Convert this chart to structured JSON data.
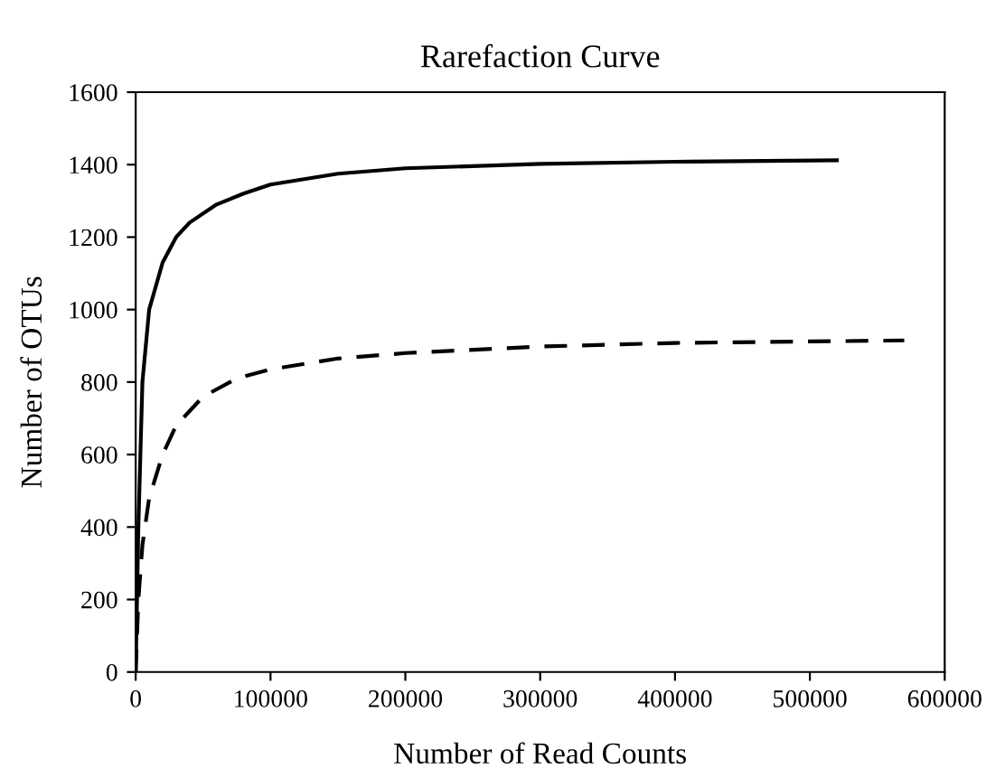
{
  "chart_data": {
    "type": "line",
    "title": "Rarefaction Curve",
    "xlabel": "Number of Read Counts",
    "ylabel": "Number of OTUs",
    "xlim": [
      0,
      600000
    ],
    "xticks": [
      0,
      100000,
      200000,
      300000,
      400000,
      500000,
      600000
    ],
    "ylim": [
      0,
      1600
    ],
    "yticks": [
      0,
      200,
      400,
      600,
      800,
      1000,
      1200,
      1400,
      1600
    ],
    "grid": false,
    "legend": false,
    "marker": "none",
    "series": [
      {
        "color": "#000000",
        "line_style": "solid",
        "x": [
          0,
          2000,
          5000,
          10000,
          20000,
          30000,
          40000,
          60000,
          80000,
          100000,
          150000,
          200000,
          300000,
          400000,
          520000
        ],
        "values": [
          0,
          400,
          800,
          1000,
          1130,
          1200,
          1240,
          1290,
          1320,
          1345,
          1375,
          1390,
          1402,
          1408,
          1412
        ]
      },
      {
        "color": "#000000",
        "line_style": "dashed",
        "x": [
          0,
          2000,
          5000,
          10000,
          20000,
          30000,
          50000,
          75000,
          100000,
          150000,
          200000,
          300000,
          400000,
          570000
        ],
        "values": [
          0,
          200,
          350,
          480,
          600,
          680,
          760,
          810,
          835,
          865,
          880,
          898,
          908,
          915
        ]
      }
    ]
  }
}
